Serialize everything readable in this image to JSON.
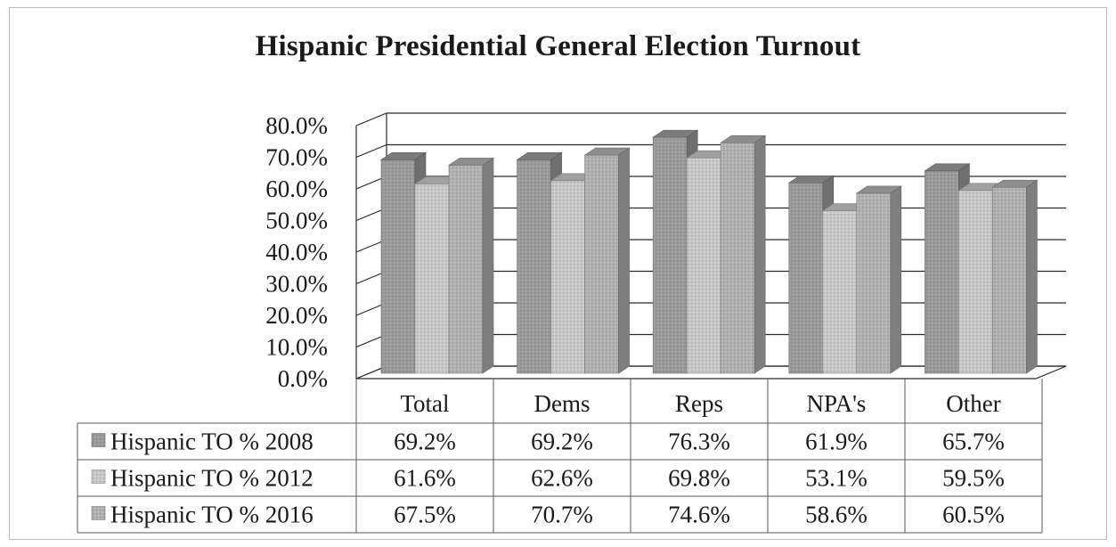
{
  "colors": {
    "series_2008": "#9a9a9a",
    "series_2012": "#c8c8c8",
    "series_2016": "#b1b1b1",
    "grid": "#2a2a2a",
    "text": "#1a1a1a"
  },
  "chart_data": {
    "type": "bar",
    "bar_style": "3d-clustered",
    "title": "Hispanic Presidential General Election Turnout",
    "xlabel": "",
    "ylabel": "",
    "ylim": [
      0,
      80
    ],
    "y_ticks": [
      "0.0%",
      "10.0%",
      "20.0%",
      "30.0%",
      "40.0%",
      "50.0%",
      "60.0%",
      "70.0%",
      "80.0%"
    ],
    "categories": [
      "Total",
      "Dems",
      "Reps",
      "NPA's",
      "Other"
    ],
    "series": [
      {
        "name": "Hispanic TO % 2008",
        "values": [
          69.2,
          69.2,
          76.3,
          61.9,
          65.7
        ],
        "labels": [
          "69.2%",
          "69.2%",
          "76.3%",
          "61.9%",
          "65.7%"
        ]
      },
      {
        "name": "Hispanic TO % 2012",
        "values": [
          61.6,
          62.6,
          69.8,
          53.1,
          59.5
        ],
        "labels": [
          "61.6%",
          "62.6%",
          "69.8%",
          "53.1%",
          "59.5%"
        ]
      },
      {
        "name": "Hispanic TO % 2016",
        "values": [
          67.5,
          70.7,
          74.6,
          58.6,
          60.5
        ],
        "labels": [
          "67.5%",
          "70.7%",
          "74.6%",
          "58.6%",
          "60.5%"
        ]
      }
    ],
    "grid": true,
    "legend": "data-table"
  }
}
